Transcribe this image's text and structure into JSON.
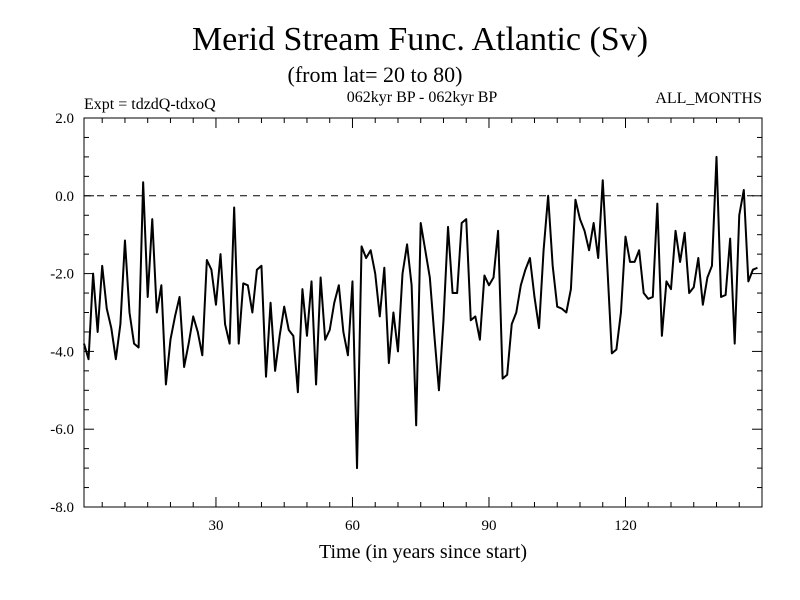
{
  "chart_data": {
    "type": "line",
    "title": "Merid Stream Func. Atlantic (Sv)",
    "subtitle": "(from lat= 20 to 80)",
    "left_label": "Expt = tdzdQ-tdxoQ",
    "center_label": "062kyr BP - 062kyr BP",
    "right_label": "ALL_MONTHS",
    "xlabel": "Time (in years since start)",
    "ylabel": "",
    "xlim": [
      1,
      150
    ],
    "ylim": [
      -8,
      2
    ],
    "x_ticks": [
      30,
      60,
      90,
      120
    ],
    "x_tick_labels": [
      "30",
      "60",
      "90",
      "120"
    ],
    "y_ticks": [
      2,
      0,
      -2,
      -4,
      -6,
      -8
    ],
    "y_tick_labels": [
      "2.0",
      "0.0",
      "-2.0",
      "-4.0",
      "-6.0",
      "-8.0"
    ],
    "reference_line": 0,
    "series": [
      {
        "name": "Merid Stream Func.",
        "values": [
          -3.8,
          -4.2,
          -2.0,
          -3.5,
          -1.8,
          -2.9,
          -3.4,
          -4.2,
          -3.3,
          -1.15,
          -3.0,
          -3.8,
          -3.9,
          0.35,
          -2.6,
          -0.6,
          -3.0,
          -2.3,
          -4.85,
          -3.7,
          -3.1,
          -2.6,
          -4.4,
          -3.8,
          -3.1,
          -3.5,
          -4.1,
          -1.65,
          -1.9,
          -2.8,
          -1.5,
          -3.3,
          -3.8,
          -0.3,
          -3.8,
          -2.25,
          -2.3,
          -3.0,
          -1.9,
          -1.8,
          -4.65,
          -2.75,
          -4.5,
          -3.6,
          -2.85,
          -3.45,
          -3.6,
          -5.05,
          -2.4,
          -3.6,
          -2.2,
          -4.85,
          -2.1,
          -3.7,
          -3.45,
          -2.75,
          -2.3,
          -3.5,
          -4.1,
          -2.2,
          -7.0,
          -1.3,
          -1.6,
          -1.4,
          -2.0,
          -3.1,
          -1.85,
          -4.3,
          -3.0,
          -4.0,
          -2.0,
          -1.25,
          -2.3,
          -5.9,
          -0.7,
          -1.4,
          -2.1,
          -3.6,
          -5.0,
          -3.2,
          -0.8,
          -2.5,
          -2.5,
          -0.7,
          -0.6,
          -3.2,
          -3.1,
          -3.7,
          -2.05,
          -2.3,
          -2.1,
          -0.9,
          -4.7,
          -4.6,
          -3.3,
          -3.0,
          -2.3,
          -1.9,
          -1.6,
          -2.6,
          -3.4,
          -1.4,
          0.0,
          -1.8,
          -2.85,
          -2.9,
          -3.0,
          -2.4,
          -0.1,
          -0.6,
          -0.9,
          -1.4,
          -0.7,
          -1.6,
          0.4,
          -1.8,
          -4.05,
          -3.95,
          -3.0,
          -1.05,
          -1.7,
          -1.7,
          -1.4,
          -2.5,
          -2.65,
          -2.6,
          -0.2,
          -3.6,
          -2.2,
          -2.4,
          -0.9,
          -1.7,
          -0.95,
          -2.5,
          -2.35,
          -1.6,
          -2.8,
          -2.1,
          -1.8,
          1.0,
          -2.6,
          -2.55,
          -1.1,
          -3.8,
          -0.5,
          0.15,
          -2.2,
          -1.9,
          -1.85
        ]
      }
    ]
  }
}
